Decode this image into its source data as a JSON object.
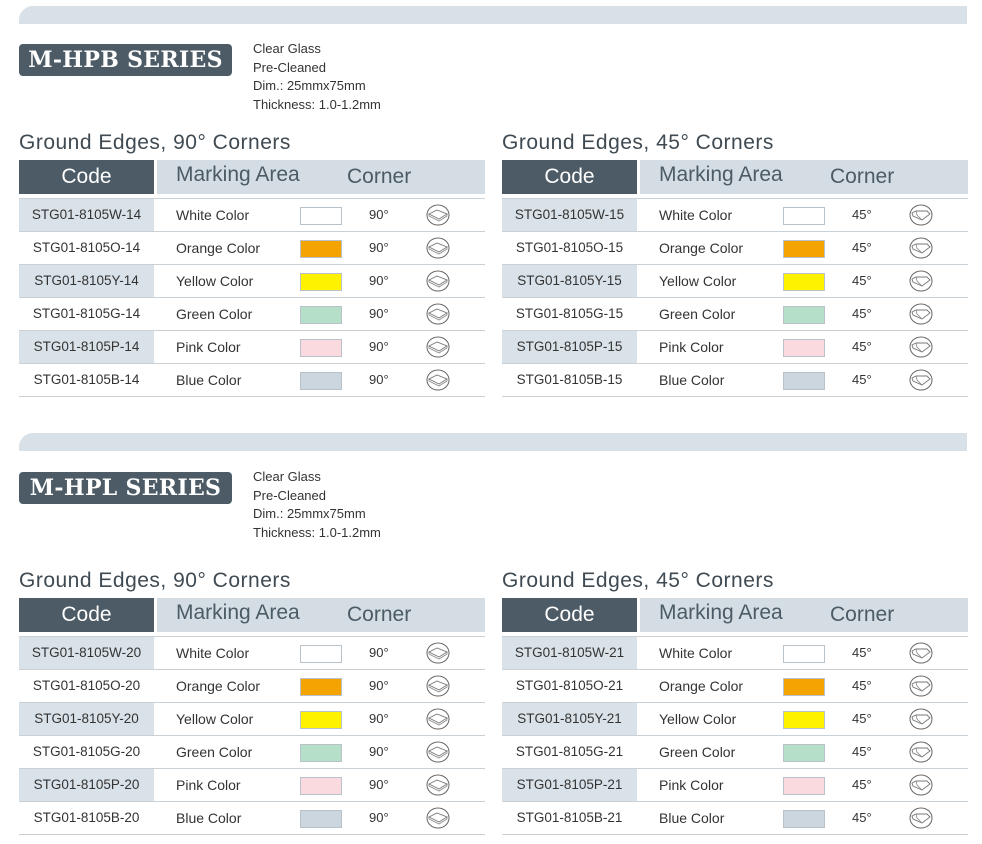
{
  "series": [
    {
      "name": "M-HPB SERIES",
      "specs": [
        "Clear Glass",
        "Pre-Cleaned",
        "Dim.: 25mmx75mm",
        "Thickness: 1.0-1.2mm"
      ],
      "tables": [
        {
          "title": "Ground Edges, 90°  Corners",
          "headers": {
            "code": "Code",
            "marking": "Marking Area",
            "corner": "Corner"
          },
          "rows": [
            {
              "code": "STG01-8105W-14",
              "name": "White Color",
              "color": "#ffffff",
              "degree": "90°"
            },
            {
              "code": "STG01-8105O-14",
              "name": "Orange Color",
              "color": "#f4a300",
              "degree": "90°"
            },
            {
              "code": "STG01-8105Y-14",
              "name": "Yellow Color",
              "color": "#fff200",
              "degree": "90°"
            },
            {
              "code": "STG01-8105G-14",
              "name": "Green Color",
              "color": "#b5dfc9",
              "degree": "90°"
            },
            {
              "code": "STG01-8105P-14",
              "name": "Pink Color",
              "color": "#fadadf",
              "degree": "90°"
            },
            {
              "code": "STG01-8105B-14",
              "name": "Blue Color",
              "color": "#cbd6df",
              "degree": "90°"
            }
          ]
        },
        {
          "title": "Ground Edges, 45°  Corners",
          "headers": {
            "code": "Code",
            "marking": "Marking Area",
            "corner": "Corner"
          },
          "rows": [
            {
              "code": "STG01-8105W-15",
              "name": "White Color",
              "color": "#ffffff",
              "degree": "45°"
            },
            {
              "code": "STG01-8105O-15",
              "name": "Orange Color",
              "color": "#f4a300",
              "degree": "45°"
            },
            {
              "code": "STG01-8105Y-15",
              "name": "Yellow Color",
              "color": "#fff200",
              "degree": "45°"
            },
            {
              "code": "STG01-8105G-15",
              "name": "Green Color",
              "color": "#b5dfc9",
              "degree": "45°"
            },
            {
              "code": "STG01-8105P-15",
              "name": "Pink Color",
              "color": "#fadadf",
              "degree": "45°"
            },
            {
              "code": "STG01-8105B-15",
              "name": "Blue Color",
              "color": "#cbd6df",
              "degree": "45°"
            }
          ]
        }
      ]
    },
    {
      "name": "M-HPL SERIES",
      "specs": [
        "Clear Glass",
        "Pre-Cleaned",
        "Dim.: 25mmx75mm",
        "Thickness: 1.0-1.2mm"
      ],
      "tables": [
        {
          "title": "Ground Edges, 90°  Corners",
          "headers": {
            "code": "Code",
            "marking": "Marking Area",
            "corner": "Corner"
          },
          "rows": [
            {
              "code": "STG01-8105W-20",
              "name": "White Color",
              "color": "#ffffff",
              "degree": "90°"
            },
            {
              "code": "STG01-8105O-20",
              "name": "Orange Color",
              "color": "#f4a300",
              "degree": "90°"
            },
            {
              "code": "STG01-8105Y-20",
              "name": "Yellow Color",
              "color": "#fff200",
              "degree": "90°"
            },
            {
              "code": "STG01-8105G-20",
              "name": "Green Color",
              "color": "#b5dfc9",
              "degree": "90°"
            },
            {
              "code": "STG01-8105P-20",
              "name": "Pink Color",
              "color": "#fadadf",
              "degree": "90°"
            },
            {
              "code": "STG01-8105B-20",
              "name": "Blue Color",
              "color": "#cbd6df",
              "degree": "90°"
            }
          ]
        },
        {
          "title": "Ground Edges, 45°  Corners",
          "headers": {
            "code": "Code",
            "marking": "Marking Area",
            "corner": "Corner"
          },
          "rows": [
            {
              "code": "STG01-8105W-21",
              "name": "White Color",
              "color": "#ffffff",
              "degree": "45°"
            },
            {
              "code": "STG01-8105O-21",
              "name": "Orange Color",
              "color": "#f4a300",
              "degree": "45°"
            },
            {
              "code": "STG01-8105Y-21",
              "name": "Yellow Color",
              "color": "#fff200",
              "degree": "45°"
            },
            {
              "code": "STG01-8105G-21",
              "name": "Green Color",
              "color": "#b5dfc9",
              "degree": "45°"
            },
            {
              "code": "STG01-8105P-21",
              "name": "Pink Color",
              "color": "#fadadf",
              "degree": "45°"
            },
            {
              "code": "STG01-8105B-21",
              "name": "Blue Color",
              "color": "#cbd6df",
              "degree": "45°"
            }
          ]
        }
      ]
    }
  ],
  "icons": {
    "corner_90": "corner-90-icon",
    "corner_45": "corner-45-icon"
  }
}
